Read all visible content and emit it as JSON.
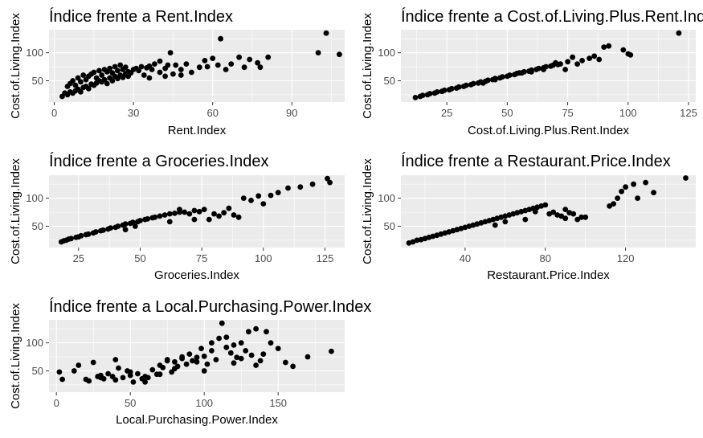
{
  "chart_data": [
    {
      "type": "scatter",
      "title": "Índice frente a Rent.Index",
      "xlabel": "Rent.Index",
      "ylabel": "Cost.of.Living.Index",
      "xlim": [
        -2,
        110
      ],
      "ylim": [
        12,
        141
      ],
      "xticks": [
        0,
        30,
        60,
        90
      ],
      "yticks": [
        50,
        100
      ],
      "grid": true,
      "x": [
        3,
        4,
        5,
        5,
        6,
        6,
        7,
        7,
        8,
        8,
        9,
        9,
        10,
        10,
        11,
        11,
        12,
        12,
        13,
        13,
        14,
        14,
        15,
        15,
        16,
        16,
        17,
        17,
        18,
        18,
        19,
        19,
        20,
        20,
        21,
        21,
        22,
        22,
        23,
        23,
        24,
        24,
        25,
        25,
        26,
        26,
        27,
        27,
        28,
        28,
        29,
        30,
        31,
        32,
        33,
        34,
        35,
        36,
        37,
        38,
        40,
        42,
        43,
        44,
        46,
        48,
        50,
        52,
        55,
        57,
        58,
        60,
        62,
        63,
        65,
        67,
        70,
        72,
        74,
        77,
        78,
        81,
        100,
        103,
        108,
        42,
        45,
        48,
        36,
        40
      ],
      "y": [
        22,
        28,
        25,
        40,
        30,
        45,
        28,
        50,
        32,
        42,
        35,
        55,
        30,
        48,
        38,
        60,
        40,
        52,
        36,
        58,
        44,
        62,
        42,
        65,
        46,
        55,
        50,
        68,
        48,
        60,
        52,
        70,
        45,
        66,
        55,
        72,
        50,
        64,
        58,
        75,
        54,
        68,
        60,
        78,
        56,
        70,
        62,
        74,
        58,
        66,
        64,
        70,
        72,
        68,
        75,
        60,
        73,
        76,
        70,
        80,
        85,
        72,
        78,
        100,
        78,
        70,
        80,
        65,
        74,
        86,
        75,
        90,
        78,
        125,
        70,
        80,
        92,
        74,
        88,
        82,
        74,
        92,
        100,
        135,
        97,
        58,
        62,
        60,
        55,
        65
      ]
    },
    {
      "type": "scatter",
      "title": "Índice frente a Cost.of.Living.Plus.Rent.Index",
      "xlabel": "Cost.of.Living.Plus.Rent.Index",
      "ylabel": "Cost.of.Living.Index",
      "xlim": [
        6,
        128
      ],
      "ylim": [
        12,
        141
      ],
      "xticks": [
        25,
        50,
        75,
        100,
        125
      ],
      "yticks": [
        50,
        100
      ],
      "grid": true,
      "x": [
        12,
        14,
        15,
        17,
        18,
        20,
        21,
        23,
        24,
        26,
        27,
        29,
        30,
        32,
        33,
        35,
        36,
        38,
        39,
        41,
        42,
        44,
        45,
        47,
        48,
        50,
        51,
        53,
        54,
        56,
        57,
        59,
        60,
        62,
        63,
        65,
        66,
        68,
        69,
        71,
        72,
        74,
        75,
        77,
        79,
        81,
        84,
        86,
        88,
        90,
        92,
        98,
        100,
        101,
        121,
        55,
        60,
        65,
        70,
        45,
        40
      ],
      "y": [
        20,
        22,
        24,
        25,
        27,
        28,
        30,
        31,
        33,
        34,
        36,
        37,
        39,
        40,
        42,
        43,
        45,
        46,
        48,
        49,
        51,
        52,
        54,
        55,
        57,
        58,
        60,
        61,
        63,
        64,
        66,
        67,
        69,
        70,
        72,
        73,
        75,
        76,
        78,
        79,
        80,
        70,
        84,
        92,
        80,
        86,
        90,
        94,
        88,
        110,
        112,
        105,
        98,
        96,
        135,
        64,
        66,
        70,
        82,
        52,
        46
      ]
    },
    {
      "type": "scatter",
      "title": "Índice frente a Groceries.Index",
      "xlabel": "Groceries.Index",
      "ylabel": "Cost.of.Living.Index",
      "xlim": [
        13,
        133
      ],
      "ylim": [
        12,
        141
      ],
      "xticks": [
        25,
        50,
        75,
        100,
        125
      ],
      "yticks": [
        50,
        100
      ],
      "grid": true,
      "x": [
        18,
        19,
        20,
        21,
        22,
        24,
        25,
        26,
        28,
        29,
        31,
        32,
        34,
        35,
        37,
        38,
        40,
        41,
        43,
        44,
        46,
        47,
        49,
        50,
        52,
        53,
        55,
        56,
        58,
        60,
        62,
        64,
        66,
        68,
        70,
        72,
        74,
        76,
        78,
        80,
        82,
        84,
        86,
        88,
        90,
        92,
        95,
        98,
        100,
        103,
        106,
        110,
        115,
        120,
        126,
        127,
        62,
        66,
        72,
        48,
        44
      ],
      "y": [
        22,
        24,
        25,
        27,
        28,
        30,
        31,
        33,
        35,
        36,
        38,
        40,
        42,
        43,
        45,
        47,
        48,
        50,
        52,
        54,
        55,
        57,
        58,
        60,
        62,
        63,
        65,
        66,
        68,
        70,
        72,
        73,
        75,
        75,
        72,
        78,
        76,
        80,
        62,
        72,
        68,
        74,
        82,
        70,
        66,
        100,
        96,
        104,
        90,
        105,
        110,
        118,
        120,
        125,
        135,
        128,
        58,
        80,
        62,
        50,
        44
      ]
    },
    {
      "type": "scatter",
      "title": "Índice frente a Restaurant.Price.Index",
      "xlabel": "Restaurant.Price.Index",
      "ylabel": "Cost.of.Living.Index",
      "xlim": [
        8,
        155
      ],
      "ylim": [
        12,
        141
      ],
      "xticks": [
        40,
        80,
        120
      ],
      "yticks": [
        50,
        100
      ],
      "grid": true,
      "x": [
        12,
        14,
        16,
        18,
        20,
        22,
        24,
        26,
        28,
        30,
        32,
        34,
        36,
        38,
        40,
        42,
        44,
        46,
        48,
        50,
        52,
        54,
        56,
        58,
        60,
        62,
        64,
        66,
        68,
        70,
        72,
        74,
        76,
        78,
        80,
        82,
        84,
        86,
        88,
        90,
        92,
        94,
        96,
        98,
        112,
        114,
        116,
        118,
        120,
        124,
        126,
        130,
        134,
        150,
        70,
        75,
        60,
        55,
        90,
        100
      ],
      "y": [
        20,
        22,
        25,
        26,
        28,
        30,
        32,
        34,
        36,
        38,
        40,
        42,
        44,
        46,
        48,
        50,
        52,
        54,
        56,
        58,
        60,
        62,
        64,
        66,
        68,
        70,
        72,
        74,
        76,
        78,
        80,
        82,
        84,
        86,
        88,
        72,
        75,
        70,
        68,
        80,
        74,
        72,
        62,
        66,
        86,
        90,
        100,
        112,
        120,
        125,
        100,
        128,
        110,
        136,
        62,
        76,
        58,
        52,
        64,
        66
      ]
    },
    {
      "type": "scatter",
      "title": "Índice frente a Local.Purchasing.Power.Index",
      "xlabel": "Local.Purchasing.Power.Index",
      "ylabel": "Cost.of.Living.Index",
      "xlim": [
        -5,
        195
      ],
      "ylim": [
        12,
        141
      ],
      "xticks": [
        0,
        50,
        100,
        150
      ],
      "yticks": [
        50,
        100
      ],
      "grid": true,
      "x": [
        2,
        4,
        12,
        15,
        20,
        22,
        25,
        28,
        30,
        32,
        35,
        38,
        40,
        42,
        45,
        48,
        50,
        52,
        55,
        58,
        60,
        62,
        65,
        68,
        70,
        72,
        75,
        78,
        80,
        82,
        85,
        88,
        90,
        92,
        95,
        98,
        100,
        102,
        105,
        108,
        110,
        112,
        115,
        118,
        120,
        122,
        125,
        128,
        130,
        132,
        135,
        138,
        140,
        142,
        145,
        150,
        155,
        160,
        170,
        186,
        30,
        40,
        50,
        60,
        85,
        95,
        105,
        115,
        125,
        135,
        70,
        75,
        80,
        100,
        120
      ],
      "y": [
        48,
        35,
        50,
        60,
        35,
        32,
        65,
        40,
        38,
        36,
        45,
        40,
        34,
        55,
        38,
        50,
        42,
        30,
        45,
        36,
        40,
        38,
        52,
        44,
        60,
        56,
        70,
        48,
        66,
        58,
        72,
        62,
        80,
        68,
        74,
        90,
        76,
        62,
        100,
        70,
        108,
        135,
        110,
        82,
        96,
        74,
        100,
        86,
        120,
        78,
        125,
        68,
        80,
        120,
        100,
        90,
        65,
        58,
        75,
        85,
        42,
        70,
        48,
        30,
        75,
        66,
        86,
        92,
        72,
        60,
        44,
        68,
        54,
        50,
        64
      ]
    }
  ]
}
